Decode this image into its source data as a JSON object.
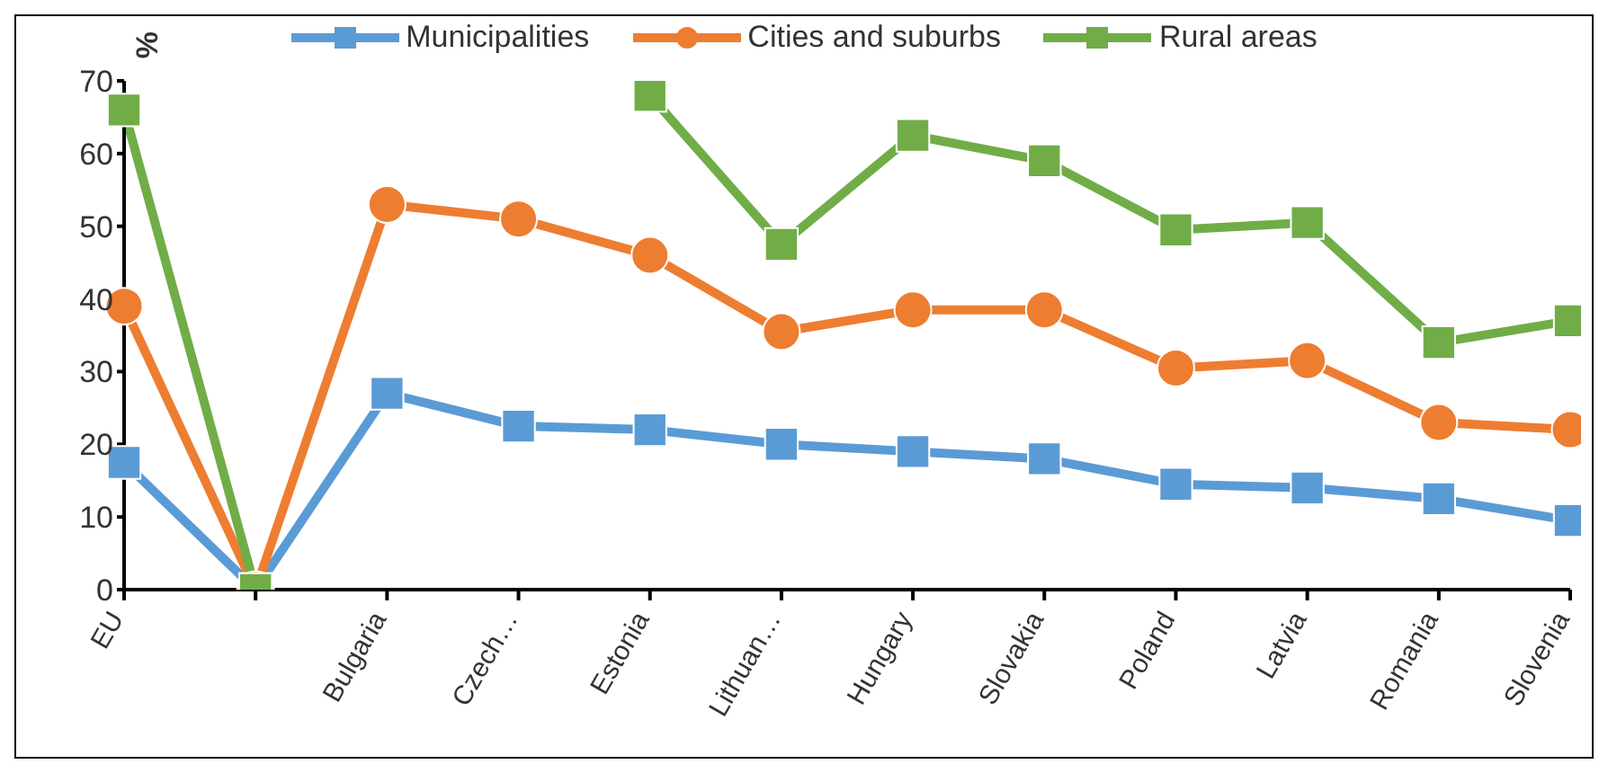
{
  "chart_data": {
    "type": "line",
    "ylabel": "%",
    "categories": [
      "EU",
      null,
      "Bulgaria",
      "Czech…",
      "Estonia",
      "Lithuan…",
      "Hungary",
      "Slovakia",
      "Poland",
      "Latvia",
      "Romania",
      "Slovenia"
    ],
    "series": [
      {
        "name": "Municipalities",
        "color": "#5b9bd5",
        "marker": "square",
        "values": [
          17.5,
          0,
          27,
          22.5,
          22,
          20,
          19,
          18,
          14.5,
          14,
          12.5,
          9.5
        ]
      },
      {
        "name": "Cities and suburbs",
        "color": "#ed7d31",
        "marker": "circle",
        "values": [
          39,
          0,
          53,
          51,
          46,
          35.5,
          38.5,
          38.5,
          30.5,
          31.5,
          23,
          22
        ]
      },
      {
        "name": "Rural areas",
        "color": "#70ad47",
        "marker": "square",
        "values": [
          66,
          0,
          null,
          null,
          68,
          47.5,
          62.5,
          59,
          49.5,
          50.5,
          34,
          37
        ]
      }
    ],
    "ylim": [
      0,
      70
    ],
    "yticks": [
      0,
      10,
      20,
      30,
      40,
      50,
      60,
      70
    ],
    "legend": "top",
    "grid": false
  }
}
